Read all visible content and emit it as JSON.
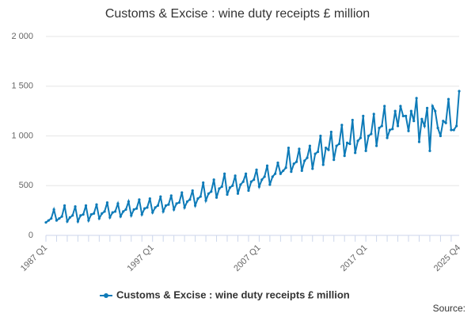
{
  "chart_data": {
    "type": "line",
    "title": "Customs & Excise : wine duty receipts £ million",
    "source": "Source:",
    "categories": [
      "1987 Q1",
      null,
      null,
      null,
      null,
      null,
      null,
      null,
      null,
      null,
      null,
      null,
      null,
      null,
      null,
      null,
      null,
      null,
      null,
      null,
      null,
      null,
      null,
      null,
      null,
      null,
      null,
      null,
      null,
      null,
      null,
      null,
      null,
      null,
      null,
      null,
      null,
      null,
      null,
      null,
      "1997 Q1",
      null,
      null,
      null,
      null,
      null,
      null,
      null,
      null,
      null,
      null,
      null,
      null,
      null,
      null,
      null,
      null,
      null,
      null,
      null,
      null,
      null,
      null,
      null,
      null,
      null,
      null,
      null,
      null,
      null,
      null,
      null,
      null,
      null,
      null,
      null,
      null,
      null,
      null,
      null,
      "2007 Q1",
      null,
      null,
      null,
      null,
      null,
      null,
      null,
      null,
      null,
      null,
      null,
      null,
      null,
      null,
      null,
      null,
      null,
      null,
      null,
      null,
      null,
      null,
      null,
      null,
      null,
      null,
      null,
      null,
      null,
      null,
      null,
      null,
      null,
      null,
      null,
      null,
      null,
      null,
      null,
      "2017 Q1",
      null,
      null,
      null,
      null,
      null,
      null,
      null,
      null,
      null,
      null,
      null,
      null,
      null,
      null,
      null,
      null,
      null,
      null,
      null,
      null,
      null,
      null,
      null,
      null,
      null,
      null,
      null,
      null,
      null,
      null,
      null,
      null,
      null,
      null,
      "2025 Q4"
    ],
    "series": [
      {
        "name": "Customs & Excise : wine duty receipts £ million",
        "color": "#0e7bb8",
        "values": [
          130,
          150,
          170,
          260,
          150,
          170,
          190,
          300,
          140,
          180,
          200,
          290,
          140,
          200,
          210,
          300,
          150,
          210,
          220,
          310,
          170,
          220,
          240,
          330,
          180,
          230,
          240,
          320,
          190,
          240,
          260,
          340,
          200,
          260,
          270,
          360,
          210,
          270,
          280,
          370,
          230,
          280,
          300,
          390,
          240,
          300,
          310,
          400,
          260,
          320,
          330,
          430,
          280,
          340,
          360,
          450,
          300,
          370,
          390,
          530,
          350,
          420,
          440,
          560,
          380,
          470,
          490,
          620,
          410,
          480,
          500,
          600,
          420,
          510,
          540,
          620,
          450,
          540,
          560,
          660,
          490,
          560,
          590,
          700,
          510,
          590,
          620,
          730,
          620,
          650,
          680,
          880,
          640,
          720,
          740,
          870,
          650,
          750,
          780,
          900,
          670,
          820,
          840,
          1000,
          710,
          880,
          860,
          1040,
          760,
          900,
          920,
          1110,
          800,
          930,
          920,
          1160,
          830,
          950,
          980,
          1200,
          850,
          1000,
          1020,
          1220,
          900,
          1080,
          1100,
          1300,
          980,
          1060,
          1070,
          1250,
          1100,
          1300,
          1200,
          1200,
          1050,
          1250,
          1150,
          1380,
          940,
          1170,
          1100,
          1280,
          850,
          1300,
          1250,
          1080,
          1000,
          1150,
          1130,
          1370,
          1060,
          1060,
          1100,
          1450
        ]
      }
    ],
    "ylim": [
      0,
      2000
    ],
    "yticks": [
      0,
      500,
      {
        "value": 1000,
        "label": "1 000"
      },
      {
        "value": 1500,
        "label": "1 500"
      },
      {
        "value": 2000,
        "label": "2 000"
      }
    ],
    "grid": true
  }
}
